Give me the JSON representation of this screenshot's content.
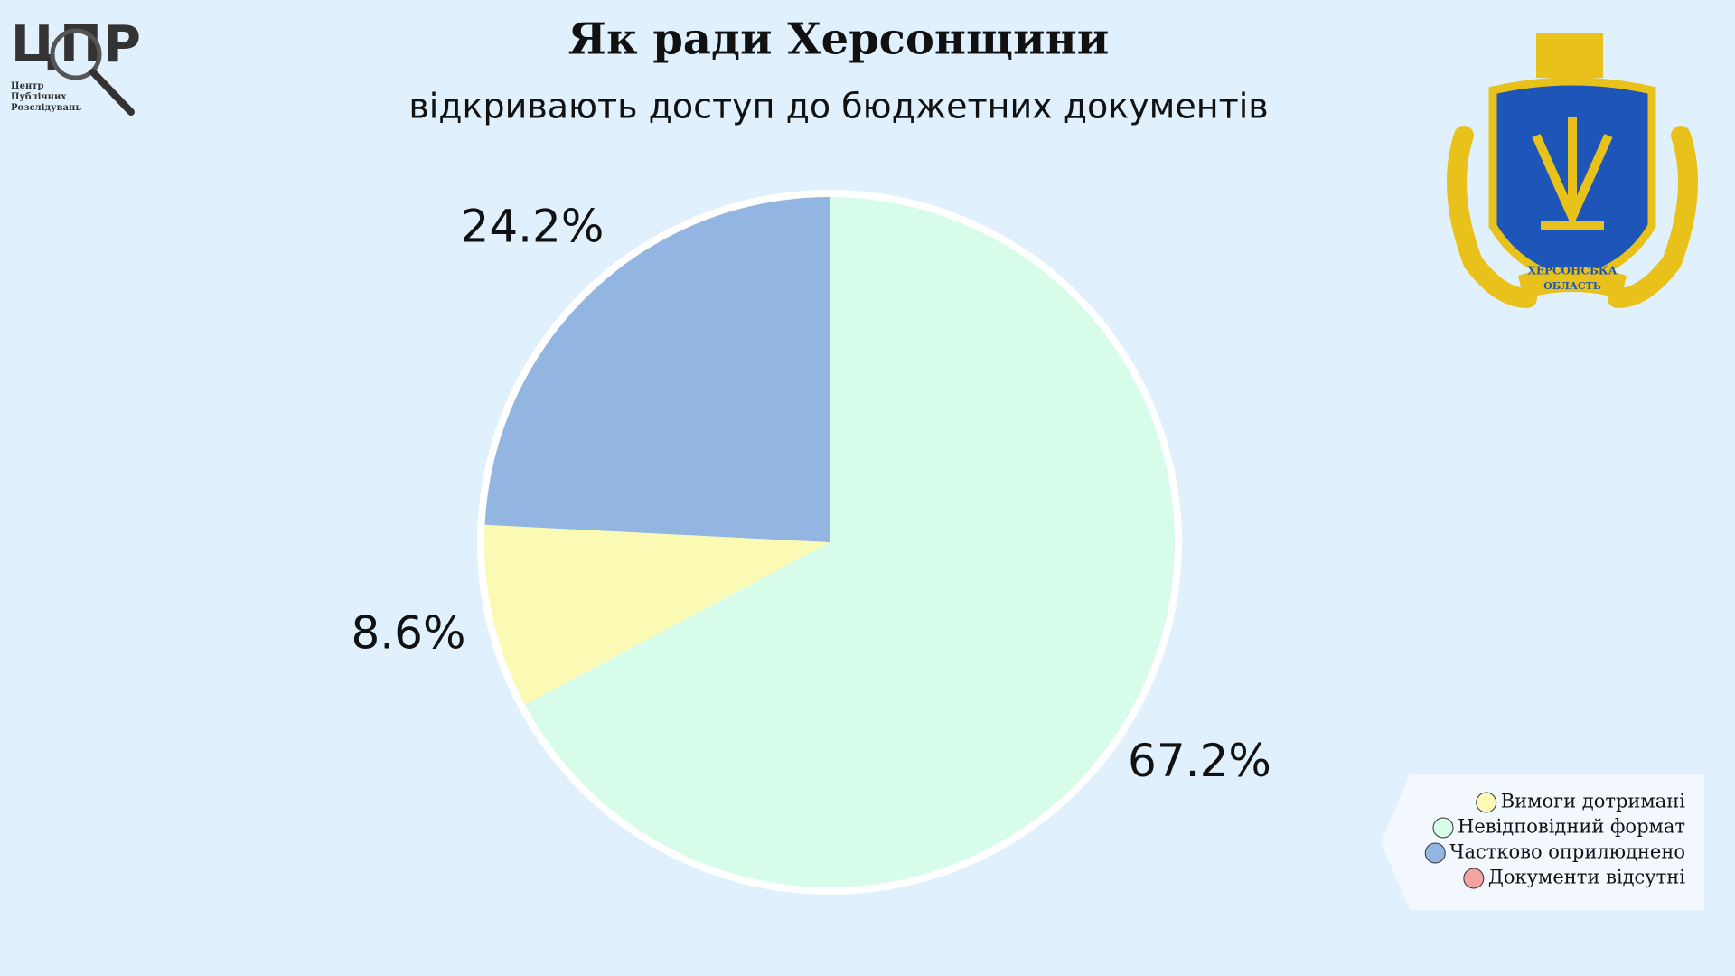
{
  "chart_data": {
    "type": "pie",
    "title": "Як ради Херсонщини",
    "subtitle": "відкривають доступ до бюджетних документів",
    "categories": [
      "Вимоги дотримані",
      "Невідповідний формат",
      "Частково оприлюднено",
      "Документи відсутні"
    ],
    "values": [
      8.6,
      67.2,
      24.2,
      0
    ],
    "value_labels": [
      "8.6%",
      "67.2%",
      "24.2%",
      null
    ],
    "colors": [
      "#fbfab5",
      "#d7fce9",
      "#93b5e1",
      "#f4a3a3"
    ],
    "legend": "bottom-right"
  },
  "logo": {
    "text": "ЦПР",
    "caption": [
      "Центр",
      "Публічних",
      "Розслідувань"
    ]
  },
  "emblem": {
    "ribbon": [
      "ХЕРСОНСЬКА",
      "ОБЛАСТЬ"
    ]
  }
}
